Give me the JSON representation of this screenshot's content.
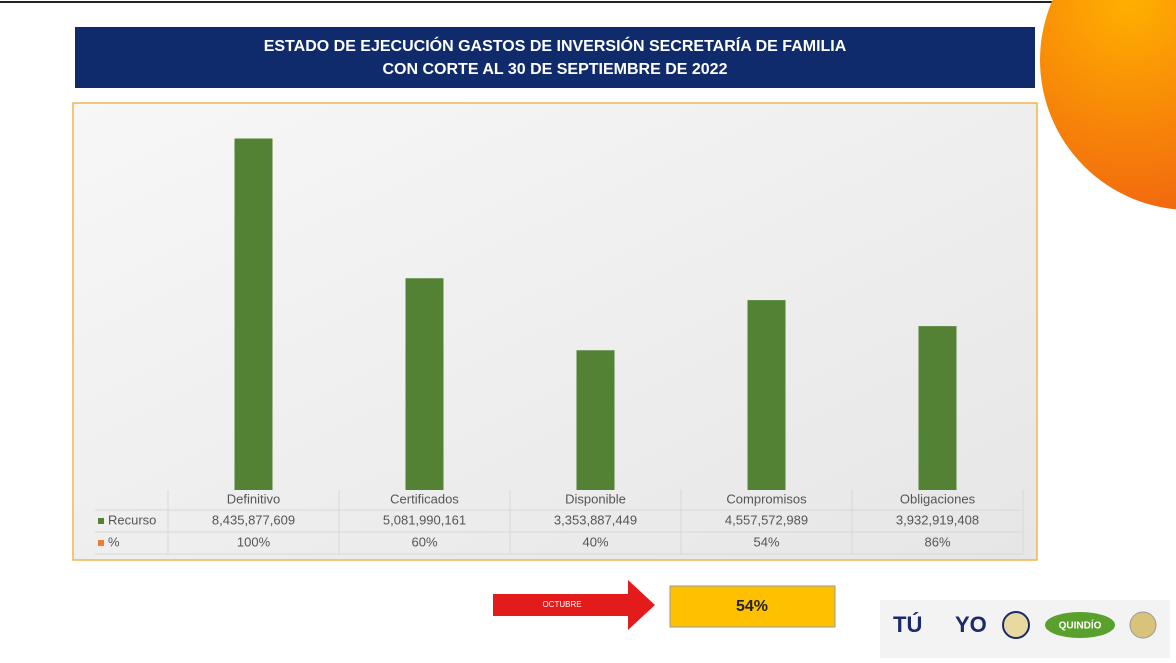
{
  "header": {
    "title_lines": [
      "ESTADO DE EJECUCIÓN GASTOS DE INVERSIÓN SECRETARÍA DE FAMILIA",
      "CON  CORTE AL 30 DE SEPTIEMBRE DE 2022"
    ]
  },
  "chart_data": {
    "type": "bar",
    "categories": [
      "Definitivo",
      "Certificados",
      "Disponible",
      "Compromisos",
      "Obligaciones"
    ],
    "series": [
      {
        "name": "Recurso",
        "color": "#548235",
        "values": [
          8435877609,
          5081990161,
          3353887449,
          4557572989,
          3932919408
        ],
        "value_labels": [
          "8,435,877,609",
          "5,081,990,161",
          "3,353,887,449",
          "4,557,572,989",
          "3,932,919,408"
        ]
      },
      {
        "name": "%",
        "color": "#ed7d31",
        "values": [
          100,
          60,
          40,
          54,
          86
        ],
        "value_labels": [
          "100%",
          "60%",
          "40%",
          "54%",
          "86%"
        ]
      }
    ],
    "ylim": [
      0,
      9000000000
    ]
  },
  "footer": {
    "arrow_label": "OCTUBRE",
    "result": "54%",
    "logos": [
      "TÚ",
      "YO",
      "QUINDÍO"
    ]
  }
}
